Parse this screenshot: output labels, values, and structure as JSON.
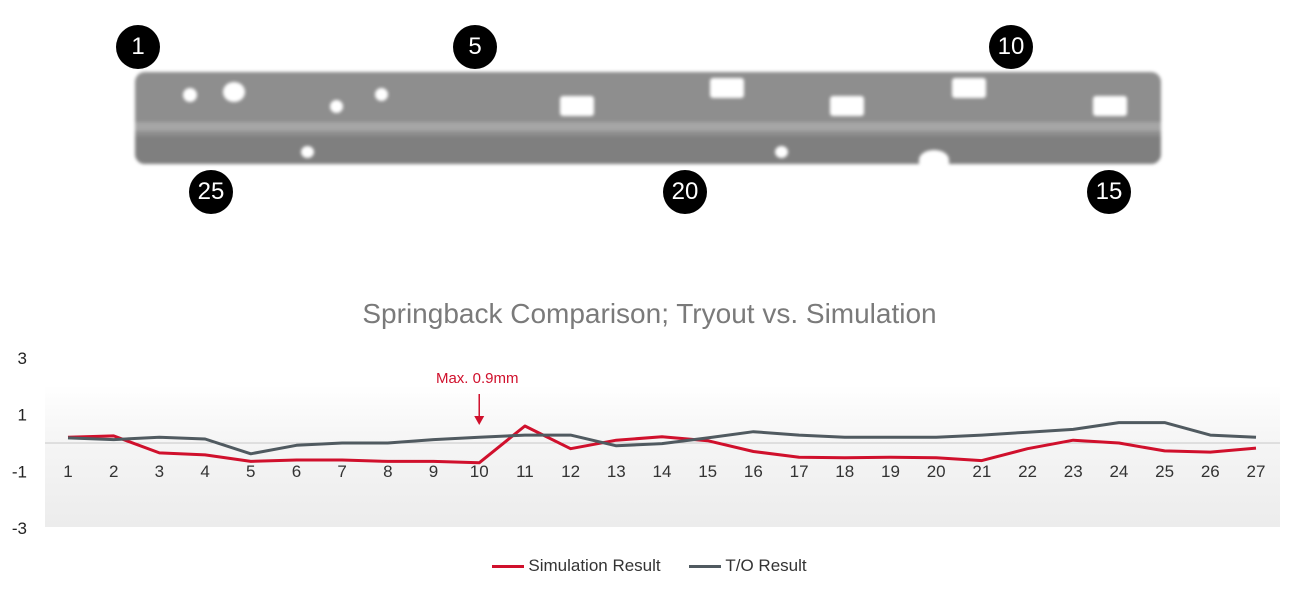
{
  "part_image": {
    "markers": [
      "1",
      "5",
      "10",
      "25",
      "20",
      "15"
    ]
  },
  "chart_data": {
    "type": "line",
    "title": "Springback Comparison; Tryout vs. Simulation",
    "xlabel": "",
    "ylabel": "",
    "categories": [
      "1",
      "2",
      "3",
      "4",
      "5",
      "6",
      "7",
      "8",
      "9",
      "10",
      "11",
      "12",
      "13",
      "14",
      "15",
      "16",
      "17",
      "18",
      "19",
      "20",
      "21",
      "22",
      "23",
      "24",
      "25",
      "26",
      "27"
    ],
    "ylim": [
      -3,
      3
    ],
    "yticks": [
      "3",
      "1",
      "-1",
      "-3"
    ],
    "series": [
      {
        "name": "Simulation Result",
        "color": "#d0102c",
        "values": [
          0.2,
          0.25,
          -0.35,
          -0.42,
          -0.65,
          -0.6,
          -0.6,
          -0.65,
          -0.65,
          -0.7,
          0.6,
          -0.2,
          0.1,
          0.22,
          0.08,
          -0.3,
          -0.5,
          -0.52,
          -0.5,
          -0.52,
          -0.62,
          -0.2,
          0.1,
          0.0,
          -0.28,
          -0.32,
          -0.18
        ]
      },
      {
        "name": "T/O Result",
        "color": "#505a60",
        "values": [
          0.18,
          0.12,
          0.2,
          0.14,
          -0.38,
          -0.08,
          0.0,
          0.0,
          0.12,
          0.2,
          0.28,
          0.28,
          -0.1,
          -0.02,
          0.18,
          0.4,
          0.28,
          0.2,
          0.2,
          0.2,
          0.28,
          0.38,
          0.48,
          0.72,
          0.72,
          0.28,
          0.2
        ]
      }
    ],
    "annotation": {
      "text": "Max. 0.9mm",
      "category": "10"
    },
    "legend_position": "bottom",
    "grid": false
  }
}
